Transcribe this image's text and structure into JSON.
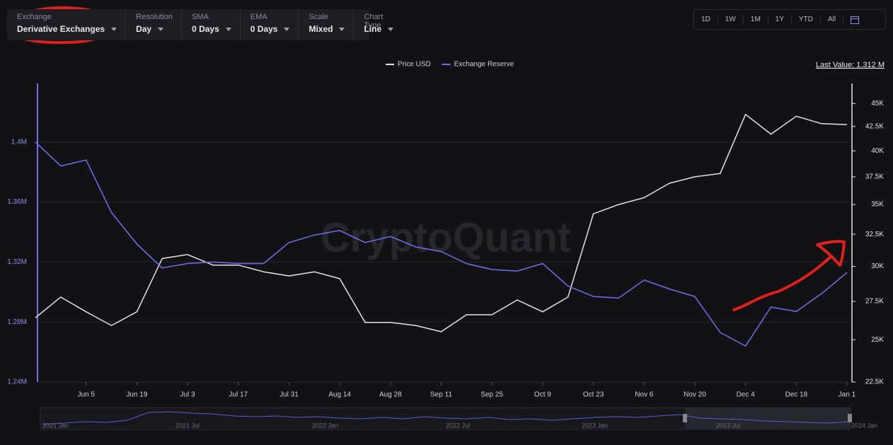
{
  "toolbar": {
    "filters": [
      {
        "label": "Exchange",
        "value": "Derivative Exchanges"
      },
      {
        "label": "Resolution",
        "value": "Day"
      },
      {
        "label": "SMA",
        "value": "0 Days"
      },
      {
        "label": "EMA",
        "value": "0 Days"
      },
      {
        "label": "Scale",
        "value": "Mixed"
      },
      {
        "label": "Chart Type",
        "value": "Line"
      }
    ],
    "ranges": [
      "1D",
      "1W",
      "1M",
      "1Y",
      "YTD",
      "All"
    ]
  },
  "chart_data": {
    "type": "line",
    "last_value": "Last Value: 1.312 M",
    "watermark": "CryptoQuant",
    "categories": [
      null,
      null,
      "Jun 5",
      null,
      "Jun 19",
      null,
      "Jul 3",
      null,
      "Jul 17",
      null,
      "Jul 31",
      null,
      "Aug 14",
      null,
      "Aug 28",
      null,
      "Sep 11",
      null,
      "Sep 25",
      null,
      "Oct 9",
      null,
      "Oct 23",
      null,
      "Nov 6",
      null,
      "Nov 20",
      null,
      "Dec 4",
      null,
      "Dec 18",
      null,
      "Jan 1"
    ],
    "series": [
      {
        "name": "Price USD",
        "color": "#e4e4e8",
        "axis": "y2",
        "values": [
          26400,
          27800,
          26800,
          25900,
          26800,
          30600,
          30900,
          30100,
          30100,
          29600,
          29300,
          29600,
          29100,
          26100,
          26100,
          25900,
          25500,
          26600,
          26600,
          27600,
          26800,
          27800,
          34200,
          35000,
          35600,
          36900,
          37500,
          37800,
          43800,
          41700,
          43600,
          42800,
          42700
        ]
      },
      {
        "name": "Exchange Reserve",
        "color": "#7070f0",
        "values": [
          1400000,
          1384000,
          1388000,
          1353000,
          1332000,
          1316000,
          1319000,
          1320000,
          1319000,
          1319000,
          1333000,
          1338000,
          1341000,
          1333000,
          1337000,
          1330000,
          1327000,
          1319000,
          1315000,
          1314000,
          1319000,
          1304000,
          1297000,
          1296000,
          1308000,
          1302000,
          1297000,
          1273000,
          1264000,
          1290000,
          1287000,
          1299000,
          1313000
        ]
      }
    ],
    "ylim": [
      1240000,
      1439000
    ],
    "yticks": [
      {
        "value": 1240000,
        "label": "1.24M"
      },
      {
        "value": 1280000,
        "label": "1.28M"
      },
      {
        "value": 1320000,
        "label": "1.32M"
      },
      {
        "value": 1360000,
        "label": "1.36M"
      },
      {
        "value": 1400000,
        "label": "1.4M"
      }
    ],
    "y2lim": [
      22500,
      47300
    ],
    "y2_log": true,
    "y2ticks": [
      {
        "value": 22500,
        "label": "22.5K"
      },
      {
        "value": 25000,
        "label": "25K"
      },
      {
        "value": 27500,
        "label": "27.5K"
      },
      {
        "value": 30000,
        "label": "30K"
      },
      {
        "value": 32500,
        "label": "32.5K"
      },
      {
        "value": 35000,
        "label": "35K"
      },
      {
        "value": 37500,
        "label": "37.5K"
      },
      {
        "value": 40000,
        "label": "40K"
      },
      {
        "value": 42500,
        "label": "42.5K"
      },
      {
        "value": 45000,
        "label": "45K"
      }
    ],
    "grid": true
  },
  "navigator": {
    "labels": [
      "2021 Jan",
      "2021 Jul",
      "2022 Jan",
      "2022 Jul",
      "2023 Jan",
      "2023 Jul",
      "2024 Jan"
    ]
  }
}
